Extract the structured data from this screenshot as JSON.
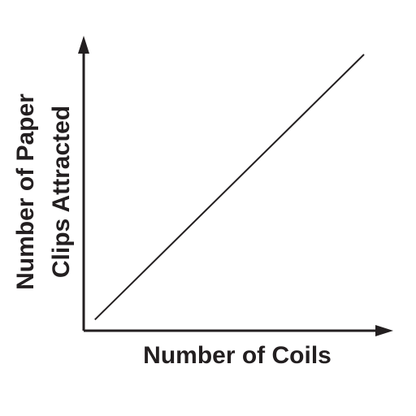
{
  "chart_data": {
    "type": "line",
    "title": "",
    "xlabel": "Number of Coils",
    "ylabel_lines": [
      "Number of Paper",
      "Clips Attracted"
    ],
    "series": [
      {
        "x": [
          0.04,
          1.0
        ],
        "y": [
          0.04,
          1.0
        ]
      }
    ],
    "xlim": [
      0,
      1.08
    ],
    "ylim": [
      0,
      1.08
    ],
    "ticks": "none",
    "grid": false,
    "legend": "none",
    "colors": {
      "ink": "#231f20",
      "background": "#ffffff"
    }
  }
}
